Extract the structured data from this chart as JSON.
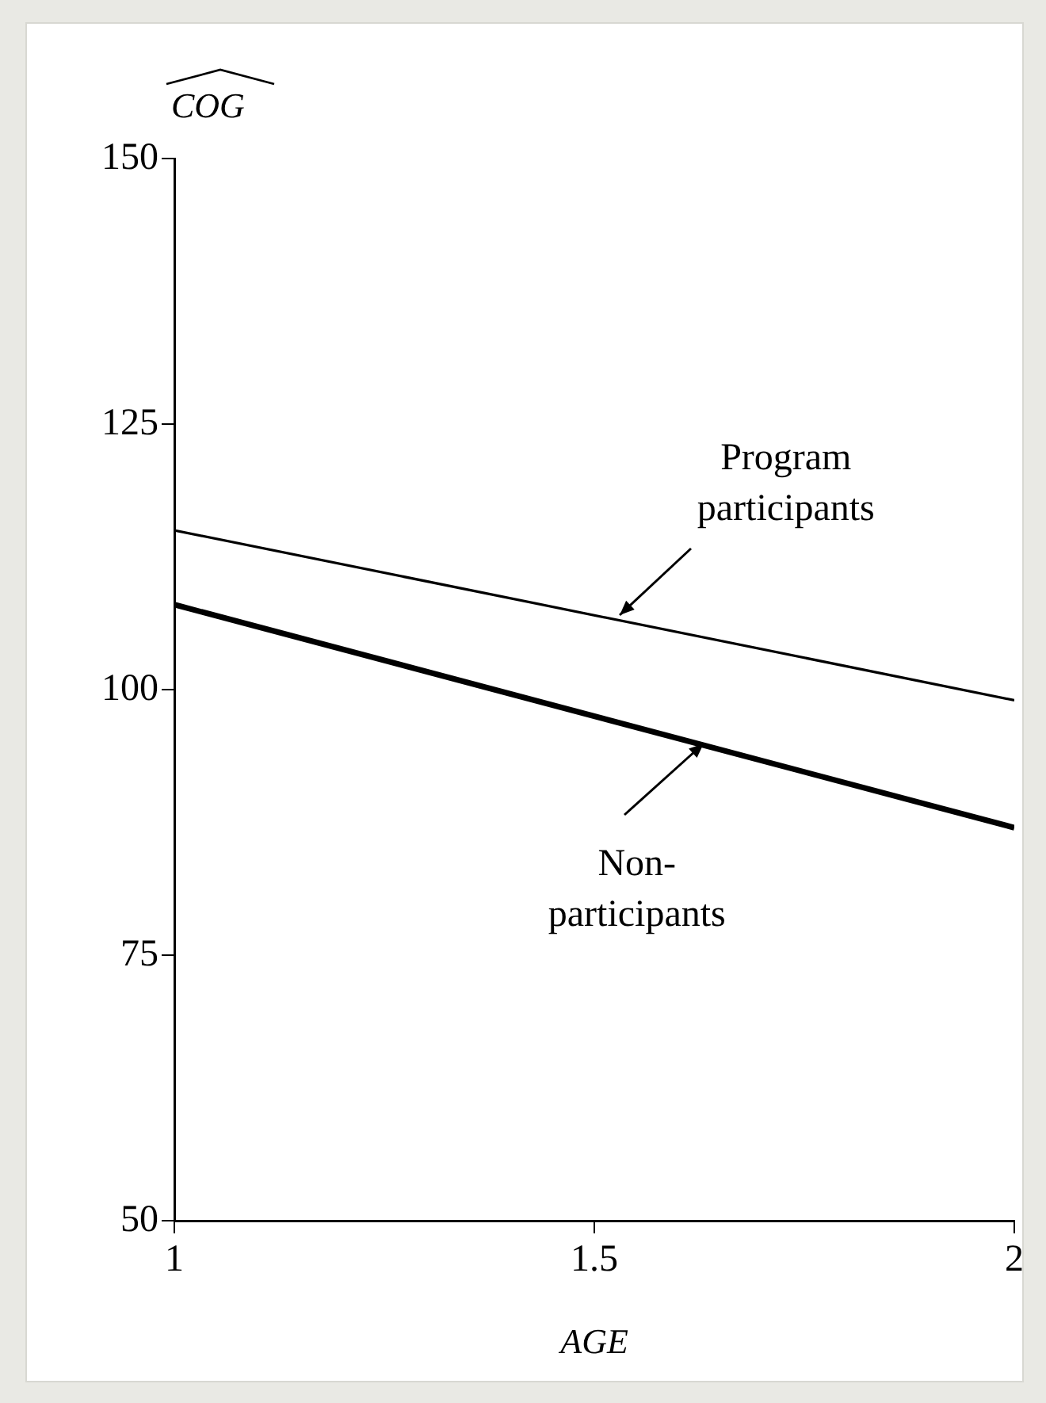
{
  "chart_data": {
    "type": "line",
    "xlabel": "AGE",
    "ylabel": "COG",
    "x": [
      1,
      2
    ],
    "series": [
      {
        "color": "#000000",
        "values": [
          115,
          99
        ]
      },
      {
        "color": "#000000",
        "values": [
          108,
          87
        ]
      }
    ],
    "xlim": [
      1,
      2
    ],
    "xticks": [
      1,
      1.5,
      2
    ],
    "ylim": [
      50,
      150
    ],
    "yticks": [
      50,
      75,
      100,
      125,
      150
    ],
    "grid": false,
    "legend": false,
    "marker": "none",
    "line_style": "solid",
    "annotations": [
      {
        "text": "Program participants",
        "x": 1.53,
        "y": 107
      },
      {
        "text": "Non-participants",
        "x": 1.63,
        "y": 95
      }
    ]
  }
}
